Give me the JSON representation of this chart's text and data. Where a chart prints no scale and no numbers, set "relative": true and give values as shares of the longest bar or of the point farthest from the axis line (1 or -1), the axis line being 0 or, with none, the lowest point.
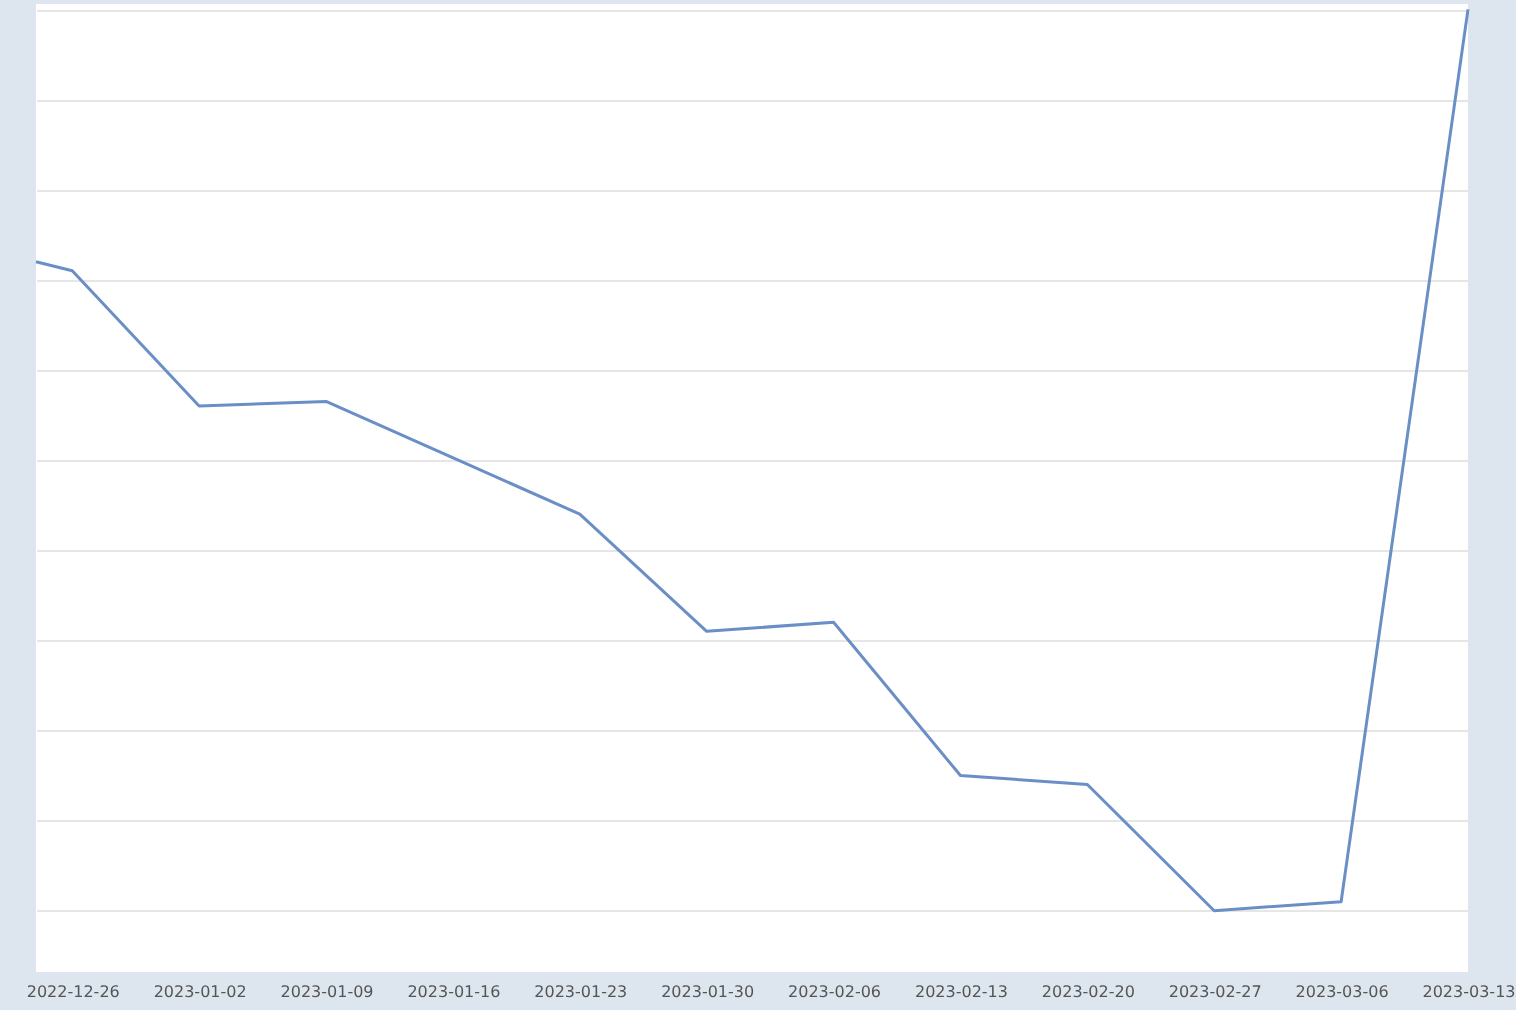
{
  "chart_data": {
    "type": "line",
    "relative": true,
    "grid": "y",
    "color": "#6a8fc6",
    "x": [
      "2022-12-24",
      "2022-12-26",
      "2023-01-02",
      "2023-01-09",
      "2023-01-23",
      "2023-01-30",
      "2023-02-06",
      "2023-02-13",
      "2023-02-20",
      "2023-02-27",
      "2023-03-06",
      "2023-03-13"
    ],
    "values": [
      0.72,
      0.71,
      0.56,
      0.565,
      0.44,
      0.31,
      0.32,
      0.15,
      0.14,
      0,
      0.01,
      1
    ],
    "xlim": [
      "2022-12-24",
      "2023-03-13"
    ],
    "xticks": [
      "2022-12-26",
      "2023-01-02",
      "2023-01-09",
      "2023-01-16",
      "2023-01-23",
      "2023-01-30",
      "2023-02-06",
      "2023-02-13",
      "2023-02-20",
      "2023-02-27",
      "2023-03-06",
      "2023-03-13"
    ]
  }
}
